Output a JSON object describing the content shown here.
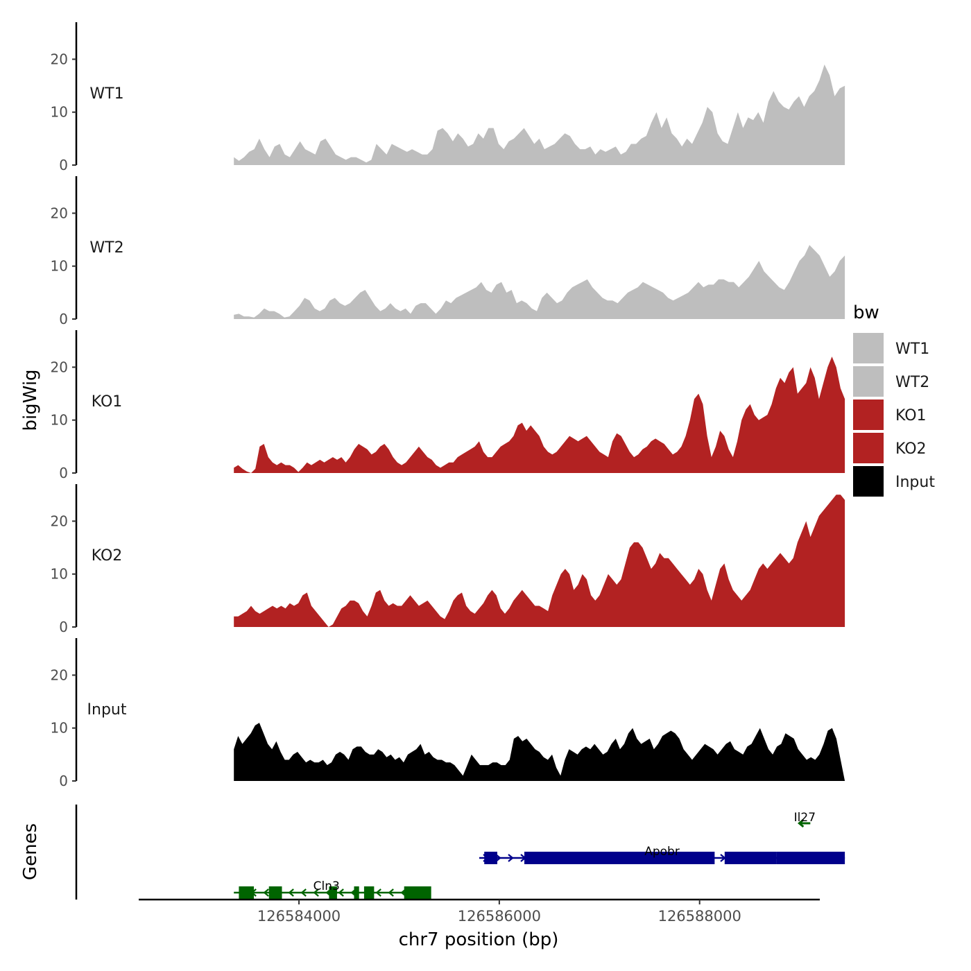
{
  "chart_data": {
    "type": "area",
    "ylabel": "bigWig",
    "xlabel": "chr7 position (bp)",
    "x_range": [
      126582400,
      126589200
    ],
    "y_range": [
      0,
      27
    ],
    "y_ticks": [
      0,
      10,
      20
    ],
    "x_ticks": [
      126584000,
      126586000,
      126588000
    ],
    "x_tick_labels": [
      "126584000",
      "126586000",
      "126588000"
    ],
    "track_start": 126583350,
    "track_end": 126589450,
    "legend": {
      "title": "bw",
      "entries": [
        {
          "label": "WT1",
          "color": "#bebebe"
        },
        {
          "label": "WT2",
          "color": "#bebebe"
        },
        {
          "label": "KO1",
          "color": "#b22222"
        },
        {
          "label": "KO2",
          "color": "#b22222"
        },
        {
          "label": "Input",
          "color": "#000000"
        }
      ]
    },
    "series": [
      {
        "name": "WT1",
        "color": "#bebebe",
        "values": [
          1.5,
          0.8,
          1.5,
          2.5,
          3,
          5,
          3,
          1.5,
          3.5,
          4,
          2,
          1.5,
          3,
          4.5,
          3,
          2.5,
          2,
          4.5,
          5,
          3.5,
          2,
          1.5,
          1,
          1.5,
          1.5,
          1,
          0.5,
          1,
          4,
          3,
          2,
          4,
          3.5,
          3,
          2.5,
          3,
          2.5,
          2,
          2,
          3,
          6.5,
          7,
          6,
          4.5,
          6,
          5,
          3.5,
          4,
          6,
          5,
          7,
          7,
          4,
          3,
          4.5,
          5,
          6,
          7,
          5.5,
          4,
          5,
          3,
          3.5,
          4,
          5,
          6,
          5.5,
          4,
          3,
          3,
          3.5,
          2,
          3,
          2.5,
          3,
          3.5,
          2,
          2.5,
          4,
          4,
          5,
          5.5,
          8,
          10,
          7,
          9,
          6,
          5,
          3.5,
          5,
          4,
          6,
          8,
          11,
          10,
          6,
          4.5,
          4,
          7,
          10,
          7,
          9,
          8.5,
          10,
          8,
          12,
          14,
          12,
          11,
          10.5,
          12,
          13,
          11,
          13,
          14,
          16,
          19,
          17,
          13,
          14.5,
          15
        ]
      },
      {
        "name": "WT2",
        "color": "#bebebe",
        "values": [
          0.8,
          1,
          0.5,
          0.5,
          0.3,
          1,
          2,
          1.5,
          1.5,
          1,
          0.3,
          0.5,
          1.5,
          2.5,
          4,
          3.5,
          2,
          1.5,
          2,
          3.5,
          4,
          3,
          2.5,
          3,
          4,
          5,
          5.5,
          4,
          2.5,
          1.5,
          2,
          3,
          2,
          1.5,
          2,
          1,
          2.5,
          3,
          3,
          2,
          1,
          2,
          3.5,
          3,
          4,
          4.5,
          5,
          5.5,
          6,
          7,
          5.5,
          5,
          6.5,
          7,
          5,
          5.5,
          3,
          3.5,
          3,
          2,
          1.5,
          4,
          5,
          4,
          3,
          3.5,
          5,
          6,
          6.5,
          7,
          7.5,
          6,
          5,
          4,
          3.5,
          3.5,
          3,
          4,
          5,
          5.5,
          6,
          7,
          6.5,
          6,
          5.5,
          5,
          4,
          3.5,
          4,
          4.5,
          5,
          6,
          7,
          6,
          6.5,
          6.5,
          7.5,
          7.5,
          7,
          7,
          6,
          7,
          8,
          9.5,
          11,
          9,
          8,
          7,
          6,
          5.5,
          7,
          9,
          11,
          12,
          14,
          13,
          12,
          10,
          8,
          9,
          11,
          12
        ]
      },
      {
        "name": "KO1",
        "color": "#b22222",
        "values": [
          1,
          1.5,
          0.8,
          0.3,
          0,
          0.8,
          5,
          5.5,
          3,
          2,
          1.5,
          2,
          1.5,
          1.5,
          1,
          0.2,
          1,
          2,
          1.5,
          2,
          2.5,
          2,
          2.5,
          3,
          2.5,
          3,
          2,
          3,
          4.5,
          5.5,
          5,
          4.5,
          3.5,
          4,
          5,
          5.5,
          4.5,
          3,
          2,
          1.5,
          2,
          3,
          4,
          5,
          4,
          3,
          2.5,
          1.5,
          1,
          1.5,
          2,
          2,
          3,
          3.5,
          4,
          4.5,
          5,
          6,
          4,
          3,
          3,
          4,
          5,
          5.5,
          6,
          7,
          9,
          9.5,
          8,
          9,
          8,
          7,
          5,
          4,
          3.5,
          4,
          5,
          6,
          7,
          6.5,
          6,
          6.5,
          7,
          6,
          5,
          4,
          3.5,
          3,
          6,
          7.5,
          7,
          5.5,
          4,
          3,
          3.5,
          4.5,
          5,
          6,
          6.5,
          6,
          5.5,
          4.5,
          3.5,
          4,
          5,
          7,
          10,
          14,
          15,
          13,
          7,
          3,
          5,
          8,
          7,
          4.5,
          3,
          6,
          10,
          12,
          13,
          11,
          10,
          10.5,
          11,
          13,
          16,
          18,
          17,
          19,
          20,
          15,
          16,
          17,
          20,
          18,
          14,
          17,
          20,
          22,
          20,
          16,
          14
        ]
      },
      {
        "name": "KO2",
        "color": "#b22222",
        "values": [
          2,
          2,
          2.5,
          3,
          4,
          3,
          2.5,
          3,
          3.5,
          4,
          3.5,
          4,
          3.5,
          4.5,
          4,
          4.5,
          6,
          6.5,
          4,
          3,
          2,
          1,
          0,
          0.5,
          2,
          3.5,
          4,
          5,
          5,
          4.5,
          3,
          2,
          4,
          6.5,
          7,
          5,
          4,
          4.5,
          4,
          4,
          5,
          6,
          5,
          4,
          4.5,
          5,
          4,
          3,
          2,
          1.5,
          3,
          5,
          6,
          6.5,
          4,
          3,
          2.5,
          3.5,
          4.5,
          6,
          7,
          6,
          3.5,
          2.5,
          3.5,
          5,
          6,
          7,
          6,
          5,
          4,
          4,
          3.5,
          3,
          6,
          8,
          10,
          11,
          10,
          7,
          8,
          10,
          9,
          6,
          5,
          6,
          8,
          10,
          9,
          8,
          9,
          12,
          15,
          16,
          16,
          15,
          13,
          11,
          12,
          14,
          13,
          13,
          12,
          11,
          10,
          9,
          8,
          9,
          11,
          10,
          7,
          5,
          8,
          11,
          12,
          9,
          7,
          6,
          5,
          6,
          7,
          9,
          11,
          12,
          11,
          12,
          13,
          14,
          13,
          12,
          13,
          16,
          18,
          20,
          17,
          19,
          21,
          22,
          23,
          24,
          25,
          25,
          24
        ]
      },
      {
        "name": "Input",
        "color": "#000000",
        "values": [
          6,
          8.5,
          7,
          8,
          9,
          10.5,
          11,
          9,
          7,
          6,
          7.5,
          5.5,
          4,
          4,
          5,
          5.5,
          4.5,
          3.5,
          4,
          3.5,
          3.5,
          4,
          3,
          3.5,
          5,
          5.5,
          5,
          4,
          6,
          6.5,
          6.5,
          5.5,
          5,
          5,
          6,
          5.5,
          4.5,
          5,
          4,
          4.5,
          3.5,
          5,
          5.5,
          6,
          7,
          5,
          5.5,
          4.5,
          4,
          4,
          3.5,
          3.5,
          3,
          2,
          1,
          3,
          5,
          4,
          3,
          3,
          3,
          3.5,
          3.5,
          3,
          3,
          4,
          8,
          8.5,
          7.5,
          8,
          7,
          6,
          5.5,
          4.5,
          4,
          5,
          2.5,
          1,
          4,
          6,
          5.5,
          5,
          6,
          6.5,
          6,
          7,
          6,
          5,
          5.5,
          7,
          8,
          6,
          7,
          9,
          10,
          8,
          7,
          7.5,
          8,
          6,
          7,
          8.5,
          9,
          9.5,
          9,
          8,
          6,
          5,
          4,
          5,
          6,
          7,
          6.5,
          6,
          5,
          6,
          7,
          7.5,
          6,
          5.5,
          5,
          6.5,
          7,
          8.5,
          10,
          8,
          6,
          5,
          6.5,
          7,
          9,
          8.5,
          8,
          6,
          5,
          4,
          4.5,
          4,
          5,
          7,
          9.5,
          10,
          8,
          4,
          0
        ]
      }
    ],
    "gene_track": {
      "ylabel": "Genes",
      "genes": [
        {
          "name": "Il27",
          "strand": "-",
          "color": "#006400",
          "row": 0,
          "start": 126589000,
          "end": 126589100,
          "exons": []
        },
        {
          "name": "Apobr",
          "strand": "+",
          "color": "#00008b",
          "row": 1,
          "start": 126585800,
          "end": 126589450,
          "exons": [
            [
              126585850,
              126585980
            ],
            [
              126586250,
              126588150
            ],
            [
              126588250,
              126588770
            ],
            [
              126588770,
              126589450
            ]
          ]
        },
        {
          "name": "Cln3",
          "strand": "-",
          "color": "#006400",
          "row": 2,
          "start": 126583350,
          "end": 126585200,
          "exons": [
            [
              126583400,
              126583550
            ],
            [
              126583700,
              126583830
            ],
            [
              126584300,
              126584380
            ],
            [
              126584550,
              126584600
            ],
            [
              126584650,
              126584750
            ],
            [
              126585050,
              126585320
            ]
          ]
        }
      ]
    }
  }
}
